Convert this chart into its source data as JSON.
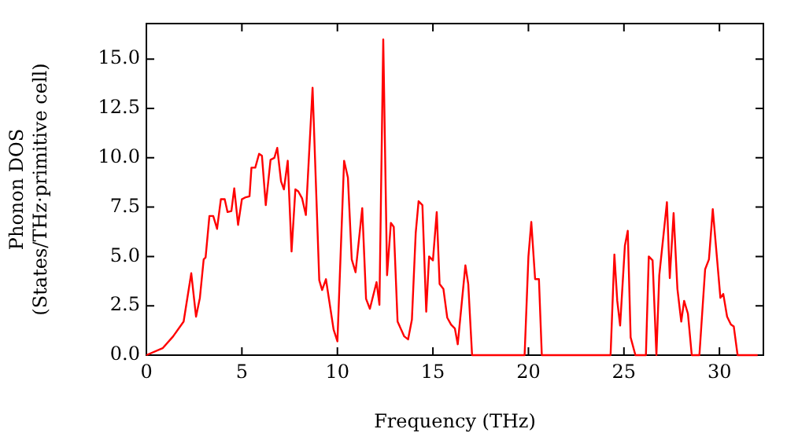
{
  "chart_data": {
    "type": "line",
    "xlabel": "Frequency (THz)",
    "ylabel": "Phonon DOS\n(States/THz·primitive cell)",
    "xlim": [
      0,
      32.3
    ],
    "ylim": [
      0,
      16.8
    ],
    "xticks": [
      0,
      5,
      10,
      15,
      20,
      25,
      30
    ],
    "yticks": [
      {
        "value": 0,
        "label": "0.0"
      },
      {
        "value": 2.5,
        "label": "2.5"
      },
      {
        "value": 5,
        "label": "5.0"
      },
      {
        "value": 7.5,
        "label": "7.5"
      },
      {
        "value": 10,
        "label": "10.0"
      },
      {
        "value": 12.5,
        "label": "12.5"
      },
      {
        "value": 15,
        "label": "15.0"
      }
    ],
    "grid": false,
    "legend": false,
    "marker": "none",
    "line_style": "solid",
    "x": [
      0,
      0.85,
      1.4,
      1.95,
      2.35,
      2.6,
      2.8,
      3.0,
      3.1,
      3.3,
      3.5,
      3.7,
      3.9,
      4.1,
      4.25,
      4.45,
      4.6,
      4.8,
      5.0,
      5.2,
      5.4,
      5.5,
      5.7,
      5.9,
      6.05,
      6.25,
      6.5,
      6.7,
      6.85,
      7.05,
      7.2,
      7.4,
      7.6,
      7.8,
      7.95,
      8.15,
      8.35,
      8.7,
      9.05,
      9.2,
      9.4,
      9.8,
      10.0,
      10.35,
      10.55,
      10.75,
      10.95,
      11.3,
      11.5,
      11.7,
      12.05,
      12.2,
      12.4,
      12.6,
      12.8,
      12.95,
      13.15,
      13.5,
      13.7,
      13.9,
      14.1,
      14.25,
      14.45,
      14.65,
      14.8,
      15.0,
      15.2,
      15.35,
      15.55,
      15.75,
      15.95,
      16.15,
      16.3,
      16.7,
      16.85,
      17.05,
      19.8,
      20.0,
      20.15,
      20.35,
      20.55,
      20.7,
      24.3,
      24.5,
      24.65,
      24.8,
      25.05,
      25.2,
      25.35,
      25.6,
      26.15,
      26.3,
      26.5,
      26.7,
      26.85,
      27.25,
      27.4,
      27.6,
      27.8,
      28.0,
      28.15,
      28.35,
      28.55,
      28.95,
      29.25,
      29.45,
      29.65,
      30.05,
      30.2,
      30.4,
      30.6,
      30.75,
      30.95,
      32.0
    ],
    "series": [
      {
        "color": "#ff0000",
        "values": [
          0,
          0.35,
          0.95,
          1.7,
          4.15,
          1.95,
          2.9,
          4.85,
          4.95,
          7.05,
          7.05,
          6.4,
          7.9,
          7.9,
          7.25,
          7.3,
          8.45,
          6.6,
          7.9,
          8.0,
          8.05,
          9.5,
          9.5,
          10.2,
          10.1,
          7.6,
          9.9,
          10.0,
          10.5,
          8.8,
          8.4,
          9.85,
          5.25,
          8.4,
          8.3,
          7.95,
          7.1,
          13.55,
          3.8,
          3.3,
          3.85,
          1.3,
          0.7,
          9.85,
          9.0,
          4.85,
          4.2,
          7.45,
          2.85,
          2.35,
          3.7,
          2.55,
          16.0,
          4.05,
          6.7,
          6.5,
          1.7,
          0.95,
          0.8,
          1.8,
          6.2,
          7.8,
          7.6,
          2.2,
          5.0,
          4.8,
          7.25,
          3.6,
          3.35,
          1.9,
          1.55,
          1.35,
          0.55,
          4.55,
          3.6,
          0,
          0,
          5.0,
          6.75,
          3.85,
          3.85,
          0,
          0,
          5.1,
          2.75,
          1.5,
          5.55,
          6.3,
          0.9,
          0,
          0,
          5.0,
          4.8,
          0,
          4.05,
          7.75,
          3.9,
          7.2,
          3.35,
          1.7,
          2.75,
          2.1,
          0,
          0,
          4.35,
          4.85,
          7.4,
          2.9,
          3.1,
          1.95,
          1.55,
          1.45,
          0,
          0
        ]
      }
    ]
  }
}
